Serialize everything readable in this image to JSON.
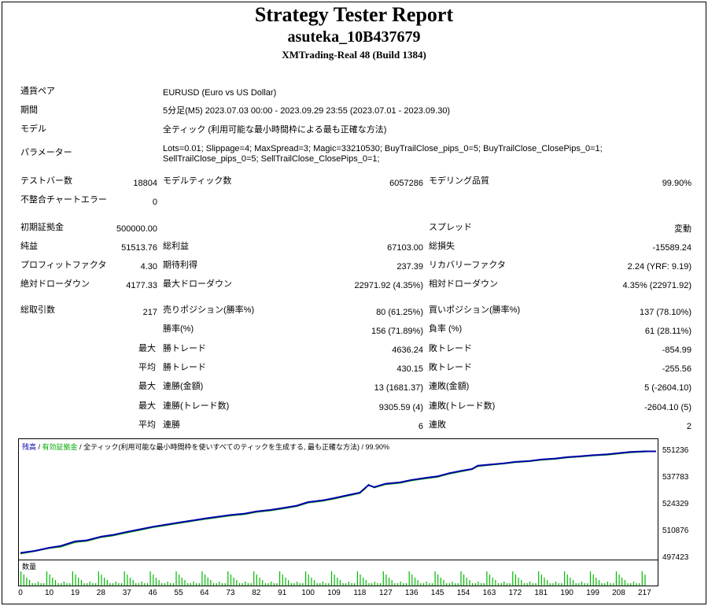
{
  "header": {
    "title": "Strategy Tester Report",
    "account": "asuteka_10B437679",
    "server": "XMTrading-Real 48 (Build 1384)"
  },
  "settings": {
    "symbol_label": "通貨ペア",
    "symbol_value": "EURUSD (Euro vs US Dollar)",
    "period_label": "期間",
    "period_value": "5分足(M5) 2023.07.03 00:00 - 2023.09.29 23:55 (2023.07.01 - 2023.09.30)",
    "model_label": "モデル",
    "model_value": "全ティック (利用可能な最小時間枠による最も正確な方法)",
    "params_label": "パラメーター",
    "params_line1": "Lots=0.01; Slippage=4; MaxSpread=3; Magic=33210530; BuyTrailClose_pips_0=5; BuyTrailClose_ClosePips_0=1;",
    "params_line2": "SellTrailClose_pips_0=5; SellTrailClose_ClosePips_0=1;"
  },
  "stats": {
    "bars_label": "テストバー数",
    "bars_value": "18804",
    "ticks_label": "モデルティック数",
    "ticks_value": "6057286",
    "quality_label": "モデリング品質",
    "quality_value": "99.90%",
    "mismatch_label": "不整合チャートエラー",
    "mismatch_value": "0",
    "deposit_label": "初期証拠金",
    "deposit_value": "500000.00",
    "spread_label": "スプレッド",
    "spread_value": "変動",
    "net_label": "純益",
    "net_value": "51513.76",
    "gross_profit_label": "総利益",
    "gross_profit_value": "67103.00",
    "gross_loss_label": "総損失",
    "gross_loss_value": "-15589.24",
    "pf_label": "プロフィットファクタ",
    "pf_value": "4.30",
    "expected_label": "期待利得",
    "expected_value": "237.39",
    "recovery_label": "リカバリーファクタ",
    "recovery_value": "2.24 (YRF: 9.19)",
    "abs_dd_label": "絶対ドローダウン",
    "abs_dd_value": "4177.33",
    "max_dd_label": "最大ドローダウン",
    "max_dd_value": "22971.92 (4.35%)",
    "rel_dd_label": "相対ドローダウン",
    "rel_dd_value": "4.35% (22971.92)",
    "trades_label": "総取引数",
    "trades_value": "217",
    "short_label": "売りポジション(勝率%)",
    "short_value": "80 (61.25%)",
    "long_label": "買いポジション(勝率%)",
    "long_value": "137 (78.10%)",
    "win_rate_label": "勝率(%)",
    "win_rate_value": "156 (71.89%)",
    "loss_rate_label": "負率 (%)",
    "loss_rate_value": "61 (28.11%)",
    "max_label": "最大",
    "avg_label": "平均",
    "largest_win_label": "勝トレード",
    "largest_win_value": "4636.24",
    "largest_loss_label": "敗トレード",
    "largest_loss_value": "-854.99",
    "avg_win_label": "勝トレード",
    "avg_win_value": "430.15",
    "avg_loss_label": "敗トレード",
    "avg_loss_value": "-255.56",
    "cons_win_amt_label": "連勝(金額)",
    "cons_win_amt_value": "13 (1681.37)",
    "cons_loss_amt_label": "連敗(金額)",
    "cons_loss_amt_value": "5 (-2604.10)",
    "cons_win_cnt_label": "連勝(トレード数)",
    "cons_win_cnt_value": "9305.59 (4)",
    "cons_loss_cnt_label": "連敗(トレード数)",
    "cons_loss_cnt_value": "-2604.10 (5)",
    "avg_cons_win_label": "連勝",
    "avg_cons_win_value": "6",
    "avg_cons_loss_label": "連敗",
    "avg_cons_loss_value": "2"
  },
  "chart_legend": {
    "balance": "残高",
    "sep1": " / ",
    "equity": "有効証拠金",
    "sep2": " / ",
    "model": "全ティック(利用可能な最小時間枠を使いすべてのティックを生成する, 最も正確な方法) / 99.90%"
  },
  "volume_title": "数量",
  "colors": {
    "balance": "#0000aa",
    "equity": "#00aa00",
    "volume": "#00bb00"
  },
  "chart_data": {
    "type": "line",
    "title": "",
    "xlabel": "",
    "ylabel": "",
    "ylim": [
      497423,
      555000
    ],
    "xlim": [
      0,
      221
    ],
    "yticks": [
      551236,
      537783,
      524329,
      510876,
      497423
    ],
    "xticks": [
      0,
      10,
      19,
      28,
      37,
      46,
      55,
      64,
      73,
      82,
      91,
      100,
      109,
      118,
      127,
      136,
      145,
      154,
      163,
      172,
      181,
      190,
      199,
      208,
      217
    ],
    "series": [
      {
        "name": "残高",
        "x": [
          0,
          5,
          10,
          14,
          19,
          23,
          28,
          32,
          37,
          41,
          46,
          50,
          55,
          60,
          64,
          68,
          73,
          78,
          82,
          87,
          91,
          96,
          100,
          105,
          109,
          114,
          118,
          121,
          123,
          127,
          132,
          136,
          141,
          145,
          149,
          154,
          157,
          159,
          163,
          168,
          172,
          177,
          181,
          186,
          190,
          195,
          199,
          204,
          208,
          212,
          217,
          221
        ],
        "y": [
          500000,
          501000,
          502600,
          503500,
          505800,
          506300,
          508200,
          509000,
          510600,
          511700,
          513200,
          514100,
          515300,
          516400,
          517300,
          518100,
          519100,
          519800,
          520900,
          521700,
          522600,
          523800,
          525600,
          526500,
          527600,
          529200,
          530400,
          534200,
          533200,
          534900,
          535600,
          536800,
          537900,
          538600,
          540200,
          541600,
          542300,
          544000,
          544500,
          545200,
          545900,
          546400,
          547100,
          547600,
          548300,
          548800,
          549300,
          549700,
          550300,
          550900,
          551236,
          551236
        ]
      },
      {
        "name": "有効証拠金",
        "x": [
          0,
          5,
          10,
          14,
          19,
          23,
          28,
          32,
          37,
          41,
          46,
          50,
          55,
          60,
          64,
          68,
          73,
          78,
          82,
          87,
          91,
          96,
          100,
          105,
          109,
          114,
          118,
          120,
          121,
          123,
          127,
          132,
          136,
          141,
          145,
          149,
          154,
          156,
          157,
          159,
          163,
          168,
          172,
          177,
          181,
          186,
          190,
          195,
          199,
          204,
          208,
          212,
          217,
          221
        ],
        "y": [
          499500,
          500800,
          502300,
          503000,
          505300,
          505900,
          507800,
          508600,
          510100,
          511300,
          512800,
          513700,
          514900,
          516000,
          516900,
          517700,
          518700,
          519400,
          520500,
          521300,
          522200,
          523400,
          525200,
          526100,
          527200,
          528800,
          530000,
          532500,
          534600,
          532800,
          534500,
          535200,
          536400,
          537500,
          538200,
          539800,
          541200,
          541800,
          542100,
          543600,
          544200,
          544900,
          545600,
          546100,
          546800,
          547300,
          548000,
          548500,
          549000,
          549400,
          550000,
          550600,
          551000,
          551236
        ]
      }
    ]
  }
}
